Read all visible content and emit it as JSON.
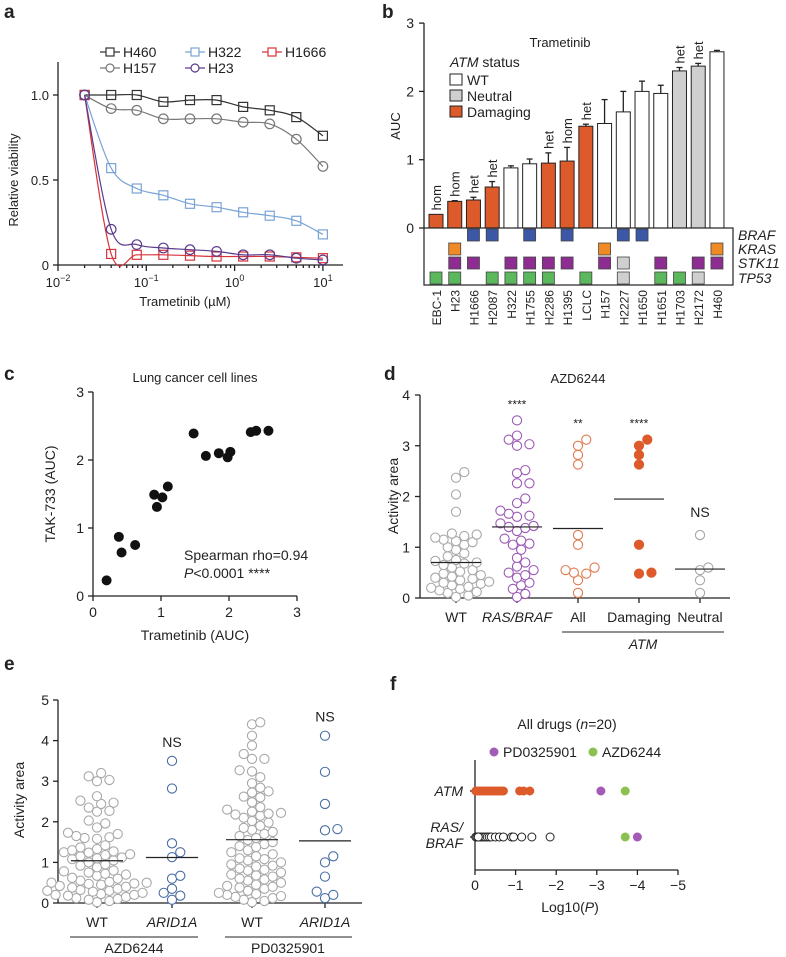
{
  "panel_labels": [
    "a",
    "b",
    "c",
    "d",
    "e",
    "f"
  ],
  "chart_data": [
    {
      "type": "line",
      "xlabel": "Trametinib (µM)",
      "ylabel": "Relative viability",
      "x_scale": "log",
      "xlim": [
        0.01,
        20
      ],
      "ylim": [
        0,
        1.2
      ],
      "xtick_base": "10",
      "xtick_exponents": [
        "−2",
        "−1",
        "0",
        "1"
      ],
      "yticks": [
        0,
        0.5,
        1.0
      ],
      "ytick_labels": [
        "0",
        "0.5",
        "1.0"
      ],
      "x": [
        0.02,
        0.04,
        0.078,
        0.156,
        0.3125,
        0.625,
        1.25,
        2.5,
        5,
        10
      ],
      "series": [
        {
          "name": "H460",
          "color": "#333333",
          "marker": "square",
          "values": [
            1.0,
            1.0,
            1.0,
            0.96,
            0.97,
            0.97,
            0.93,
            0.91,
            0.87,
            0.76
          ]
        },
        {
          "name": "H322",
          "color": "#7aa3d6",
          "marker": "square",
          "values": [
            1.0,
            0.57,
            0.45,
            0.41,
            0.36,
            0.34,
            0.31,
            0.29,
            0.26,
            0.18
          ]
        },
        {
          "name": "H1666",
          "color": "#d6333a",
          "marker": "square",
          "values": [
            1.0,
            0.065,
            0.06,
            0.06,
            0.055,
            0.05,
            0.05,
            0.05,
            0.045,
            0.04
          ]
        },
        {
          "name": "H157",
          "color": "#777777",
          "marker": "circle",
          "values": [
            1.0,
            0.92,
            0.91,
            0.86,
            0.86,
            0.86,
            0.84,
            0.83,
            0.74,
            0.58
          ]
        },
        {
          "name": "H23",
          "color": "#5b3a8c",
          "marker": "circle",
          "values": [
            1.0,
            0.21,
            0.12,
            0.1,
            0.09,
            0.08,
            0.06,
            0.06,
            0.04,
            0.03
          ]
        }
      ]
    },
    {
      "type": "bar",
      "title": "Trametinib",
      "ylabel": "AUC",
      "ylim": [
        0,
        3
      ],
      "yticks": [
        0,
        1,
        2,
        3
      ],
      "ytick_labels": [
        "0",
        "1",
        "2",
        "3"
      ],
      "categories": [
        "EBC-1",
        "H23",
        "H1666",
        "H2087",
        "H322",
        "H1755",
        "H2286",
        "H1395",
        "LCLC",
        "H157",
        "H2227",
        "H1650",
        "H1651",
        "H1703",
        "H2172",
        "H460"
      ],
      "values": [
        0.2,
        0.39,
        0.41,
        0.6,
        0.88,
        0.94,
        0.95,
        0.98,
        1.49,
        1.53,
        1.7,
        2.0,
        1.97,
        2.3,
        2.37,
        2.58
      ],
      "errors": [
        0,
        0.01,
        0.04,
        0.08,
        0.03,
        0.07,
        0.15,
        0.2,
        0.03,
        0.35,
        0.3,
        0.15,
        0.12,
        0.05,
        0.04,
        0.02
      ],
      "status": [
        "Damaging",
        "Damaging",
        "Damaging",
        "Damaging",
        "WT",
        "WT",
        "Damaging",
        "Damaging",
        "Damaging",
        "WT",
        "WT",
        "WT",
        "WT",
        "Neutral",
        "Neutral",
        "WT"
      ],
      "zygosity": [
        "hom",
        "hom",
        "het",
        "het",
        "",
        "",
        "het",
        "hom",
        "het",
        "",
        "",
        "",
        "",
        "het",
        "het",
        ""
      ],
      "legend": {
        "title_italic": "ATM",
        "title_rest": " status",
        "entries": [
          {
            "label": "WT",
            "color": "#ffffff"
          },
          {
            "label": "Neutral",
            "color": "#cfcfcf"
          },
          {
            "label": "Damaging",
            "color": "#dd5a2b"
          }
        ]
      },
      "mutations": {
        "genes": [
          "BRAF",
          "KRAS",
          "STK11",
          "TP53"
        ],
        "colors": [
          "#3b57a6",
          "#f08a24",
          "#8e2d91",
          "#5cb85c"
        ],
        "neutral_color": "#cfcfcf",
        "matrix": [
          [
            0,
            0,
            1,
            1,
            0,
            1,
            0,
            1,
            0,
            0,
            1,
            1,
            0,
            0,
            0,
            0
          ],
          [
            0,
            1,
            0,
            0,
            0,
            0,
            0,
            0,
            0,
            1,
            0,
            0,
            0,
            0,
            0,
            1
          ],
          [
            0,
            1,
            1,
            0,
            1,
            1,
            1,
            1,
            0,
            1,
            2,
            0,
            1,
            0,
            1,
            1
          ],
          [
            1,
            1,
            0,
            1,
            1,
            1,
            1,
            0,
            1,
            0,
            2,
            0,
            1,
            1,
            2,
            0
          ]
        ]
      }
    },
    {
      "type": "scatter",
      "title": "Lung cancer cell lines",
      "xlabel": "Trametinib (AUC)",
      "ylabel": "TAK-733 (AUC)",
      "xlim": [
        0,
        3
      ],
      "ylim": [
        0,
        3
      ],
      "ticks": [
        "0",
        "1",
        "2",
        "3"
      ],
      "annotation_line1": "Spearman rho=0.94",
      "annotation_p_italic": "P",
      "annotation_p_rest": "<0.0001 ****",
      "points": [
        [
          0.2,
          0.23
        ],
        [
          0.38,
          0.87
        ],
        [
          0.42,
          0.64
        ],
        [
          0.62,
          0.75
        ],
        [
          0.9,
          1.49
        ],
        [
          0.94,
          1.31
        ],
        [
          1.02,
          1.45
        ],
        [
          1.1,
          1.61
        ],
        [
          1.48,
          2.39
        ],
        [
          1.66,
          2.06
        ],
        [
          1.85,
          2.1
        ],
        [
          1.98,
          2.04
        ],
        [
          2.02,
          2.12
        ],
        [
          2.32,
          2.41
        ],
        [
          2.4,
          2.43
        ],
        [
          2.58,
          2.43
        ]
      ]
    },
    {
      "type": "scatter",
      "title": "AZD6244",
      "ylabel": "Activity area",
      "ylim": [
        0,
        4
      ],
      "yticks": [
        "0",
        "1",
        "2",
        "3",
        "4"
      ],
      "bracket_label": "ATM",
      "groups": [
        {
          "label": "WT",
          "italic": false,
          "color": "#a8a8a8",
          "filled": false,
          "mean": 0.7,
          "sig": "",
          "values": [
            2.48,
            2.37,
            2.04,
            1.7,
            1.27,
            1.25,
            1.22,
            1.19,
            1.15,
            1.12,
            1.1,
            1.05,
            1.0,
            0.95,
            0.88,
            0.82,
            0.75,
            0.73,
            0.7,
            0.68,
            0.65,
            0.6,
            0.55,
            0.52,
            0.48,
            0.45,
            0.42,
            0.4,
            0.38,
            0.35,
            0.32,
            0.3,
            0.28,
            0.25,
            0.22,
            0.2,
            0.18,
            0.15,
            0.12,
            0.1,
            0.05,
            0.02
          ]
        },
        {
          "label": "RAS/BRAF",
          "italic": true,
          "color": "#9b59b6",
          "filled": false,
          "mean": 1.4,
          "sig": "****",
          "values": [
            3.5,
            3.2,
            3.12,
            3.03,
            3.0,
            2.52,
            2.46,
            2.26,
            2.26,
            1.96,
            1.87,
            1.72,
            1.66,
            1.62,
            1.6,
            1.47,
            1.42,
            1.4,
            1.38,
            1.32,
            1.17,
            1.13,
            1.07,
            1.05,
            0.95,
            0.79,
            0.7,
            0.62,
            0.55,
            0.5,
            0.45,
            0.4,
            0.3,
            0.25,
            0.18,
            0.08,
            0.02
          ]
        },
        {
          "label": "All",
          "italic": false,
          "color": "#e07a4f",
          "filled": false,
          "mean": 1.37,
          "sig": "**",
          "values": [
            3.12,
            3.0,
            2.82,
            2.63,
            1.24,
            1.05,
            0.6,
            0.55,
            0.5,
            0.48,
            0.35,
            0.1
          ]
        },
        {
          "label": "Damaging",
          "italic": false,
          "color": "#dd5a2b",
          "filled": true,
          "mean": 1.95,
          "sig": "****",
          "values": [
            3.12,
            3.0,
            2.82,
            2.63,
            1.05,
            0.5,
            0.48
          ]
        },
        {
          "label": "Neutral",
          "italic": false,
          "color": "#a8a8a8",
          "filled": false,
          "mean": 0.57,
          "sig": "NS",
          "values": [
            1.24,
            0.6,
            0.55,
            0.35,
            0.1
          ]
        }
      ]
    },
    {
      "type": "scatter",
      "ylabel": "Activity area",
      "ylim": [
        0,
        5
      ],
      "yticks": [
        "0",
        "1",
        "2",
        "3",
        "4",
        "5"
      ],
      "drugs": [
        "AZD6244",
        "PD0325901"
      ],
      "groups": [
        {
          "label": "WT",
          "italic": false,
          "drug": "AZD6244",
          "color": "#a8a8a8",
          "mean": 1.04,
          "sig": "",
          "values": [
            3.2,
            3.12,
            3.03,
            3.0,
            2.63,
            2.52,
            2.47,
            2.44,
            2.35,
            2.27,
            2.25,
            2.03,
            1.96,
            1.86,
            1.73,
            1.7,
            1.65,
            1.62,
            1.6,
            1.58,
            1.42,
            1.37,
            1.33,
            1.3,
            1.27,
            1.25,
            1.24,
            1.2,
            1.18,
            1.15,
            1.12,
            1.1,
            1.08,
            1.05,
            1.0,
            0.95,
            0.92,
            0.88,
            0.8,
            0.78,
            0.75,
            0.72,
            0.7,
            0.67,
            0.62,
            0.6,
            0.55,
            0.52,
            0.5,
            0.5,
            0.48,
            0.47,
            0.45,
            0.42,
            0.4,
            0.38,
            0.35,
            0.32,
            0.3,
            0.3,
            0.28,
            0.25,
            0.22,
            0.2,
            0.2,
            0.18,
            0.15,
            0.12,
            0.1,
            0.08,
            0.05,
            0.02
          ]
        },
        {
          "label": "ARID1A",
          "italic": true,
          "drug": "AZD6244",
          "color": "#4a6fa5",
          "mean": 1.12,
          "sig": "NS",
          "values": [
            3.5,
            2.82,
            1.47,
            1.25,
            1.13,
            0.67,
            0.6,
            0.35,
            0.25,
            0.18,
            0.08
          ]
        },
        {
          "label": "WT",
          "italic": false,
          "drug": "PD0325901",
          "color": "#a8a8a8",
          "mean": 1.56,
          "sig": "",
          "values": [
            4.45,
            4.4,
            4.12,
            3.88,
            3.67,
            3.55,
            3.55,
            3.27,
            3.24,
            3.1,
            2.95,
            2.84,
            2.75,
            2.72,
            2.62,
            2.6,
            2.48,
            2.36,
            2.3,
            2.25,
            2.22,
            2.2,
            2.18,
            2.15,
            2.1,
            2.02,
            1.98,
            1.9,
            1.85,
            1.8,
            1.75,
            1.7,
            1.65,
            1.6,
            1.55,
            1.5,
            1.45,
            1.4,
            1.38,
            1.3,
            1.25,
            1.2,
            1.15,
            1.1,
            1.08,
            1.05,
            1.0,
            0.95,
            0.92,
            0.9,
            0.85,
            0.82,
            0.8,
            0.75,
            0.7,
            0.68,
            0.65,
            0.6,
            0.58,
            0.55,
            0.5,
            0.45,
            0.42,
            0.4,
            0.38,
            0.35,
            0.3,
            0.25,
            0.22,
            0.2,
            0.17,
            0.15,
            0.12,
            0.08,
            0.05,
            0.02
          ]
        },
        {
          "label": "ARID1A",
          "italic": true,
          "drug": "PD0325901",
          "color": "#4a6fa5",
          "mean": 1.53,
          "sig": "NS",
          "values": [
            4.12,
            3.23,
            2.44,
            1.82,
            1.79,
            1.15,
            1.0,
            0.65,
            0.28,
            0.2,
            0.12
          ]
        }
      ]
    },
    {
      "type": "scatter",
      "title_pre": "All drugs (",
      "title_italic": "n",
      "title_post": "=20)",
      "xlabel_pre": "Log10(",
      "xlabel_italic": "P",
      "xlabel_post": ")",
      "xlim": [
        0,
        -5
      ],
      "xticks": [
        "0",
        "−1",
        "−2",
        "−3",
        "−4",
        "−5"
      ],
      "legend": [
        {
          "label": "PD0325901",
          "color": "#a35bb5"
        },
        {
          "label": "AZD6244",
          "color": "#8cc152"
        }
      ],
      "rows": [
        {
          "label_lines": [
            "ATM"
          ],
          "color": "#dd5a2b",
          "filled": true,
          "values": [
            -0.02,
            -0.05,
            -0.1,
            -0.15,
            -0.2,
            -0.25,
            -0.3,
            -0.35,
            -0.4,
            -0.45,
            -0.5,
            -0.55,
            -0.6,
            -0.65,
            -0.7,
            -1.1,
            -1.2,
            -1.35
          ],
          "PD0325901": -3.1,
          "AZD6244": -3.7
        },
        {
          "label_lines": [
            "RAS/",
            "BRAF"
          ],
          "color": "#222222",
          "filled": false,
          "values": [
            -0.02,
            -0.05,
            -0.1,
            -0.15,
            -0.2,
            -0.25,
            -0.3,
            -0.35,
            -0.4,
            -0.5,
            -0.6,
            -0.7,
            -0.9,
            -0.95,
            -1.15,
            -1.4,
            -1.85,
            -0.08
          ],
          "PD0325901": -4.0,
          "AZD6244": -3.7
        }
      ]
    }
  ]
}
